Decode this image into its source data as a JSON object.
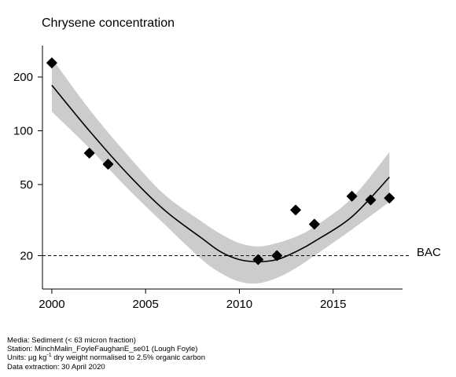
{
  "chart_data": {
    "type": "scatter",
    "title": "Chrysene concentration",
    "y_scale": "log",
    "xlim": [
      1999.5,
      2018.7
    ],
    "ylim": [
      13,
      300
    ],
    "x_ticks": [
      2000,
      2005,
      2010,
      2015
    ],
    "y_ticks": [
      20,
      50,
      100,
      200
    ],
    "points": [
      {
        "x": 2000,
        "y": 240
      },
      {
        "x": 2002,
        "y": 75
      },
      {
        "x": 2003,
        "y": 65
      },
      {
        "x": 2011,
        "y": 19
      },
      {
        "x": 2012,
        "y": 20
      },
      {
        "x": 2013,
        "y": 36
      },
      {
        "x": 2014,
        "y": 30
      },
      {
        "x": 2016,
        "y": 43
      },
      {
        "x": 2017,
        "y": 41
      },
      {
        "x": 2018,
        "y": 42
      }
    ],
    "trend": {
      "x": [
        2000,
        2002,
        2004,
        2006,
        2008,
        2009,
        2010,
        2011,
        2012,
        2013,
        2014,
        2016,
        2018
      ],
      "y": [
        180,
        100,
        58,
        36,
        25,
        21,
        19,
        18.5,
        19,
        21,
        24,
        33,
        55
      ],
      "lower": [
        128,
        80,
        48,
        30,
        19,
        16,
        14.3,
        14,
        15,
        17,
        20,
        28,
        40
      ],
      "upper": [
        255,
        132,
        74,
        44,
        31,
        26.5,
        23.5,
        22.5,
        23.5,
        25.5,
        29,
        42,
        76
      ]
    },
    "reference_line": {
      "label": "BAC",
      "y": 20,
      "style": "dashed"
    },
    "colors": {
      "points": "#000000",
      "trend": "#000000",
      "band": "#cccccc"
    }
  },
  "footer": {
    "media": "Media: Sediment (< 63 micron fraction)",
    "station": "Station: MinchMalin_FoyleFaughanE_se01 (Lough Foyle)",
    "units_prefix": "Units: µg kg",
    "units_sup": "-1",
    "units_suffix": " dry weight normalised to 2.5% organic carbon",
    "extraction": "Data extraction: 30 April 2020"
  }
}
